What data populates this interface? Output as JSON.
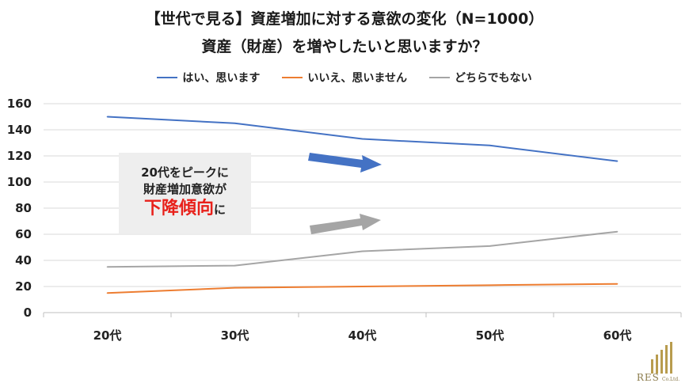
{
  "chart_data": {
    "type": "line",
    "title": "【世代で見る】資産増加に対する意欲の変化（N=1000）",
    "subtitle": "資産（財産）を増やしたいと思いますか？",
    "categories": [
      "20代",
      "30代",
      "40代",
      "50代",
      "60代"
    ],
    "ylim": [
      0,
      160
    ],
    "yticks": [
      0,
      20,
      40,
      60,
      80,
      100,
      120,
      140,
      160
    ],
    "grid": true,
    "legend_position": "top",
    "series": [
      {
        "name": "はい、思います",
        "color": "#4472c4",
        "values": [
          150,
          145,
          133,
          128,
          116
        ]
      },
      {
        "name": "いいえ、思いません",
        "color": "#ed7d31",
        "values": [
          15,
          19,
          20,
          21,
          22
        ]
      },
      {
        "name": "どちらでもない",
        "color": "#a5a5a5",
        "values": [
          35,
          36,
          47,
          51,
          62
        ]
      }
    ]
  },
  "callout": {
    "line1": "20代をピークに",
    "line2": "財産増加意欲が",
    "highlight": "下降傾向",
    "suffix": "に"
  },
  "arrows": {
    "down_color": "#4472c4",
    "up_color": "#a5a5a5"
  },
  "logo": {
    "name": "RES",
    "suffix": "Co.Ltd.",
    "color": "#b89c4e"
  }
}
